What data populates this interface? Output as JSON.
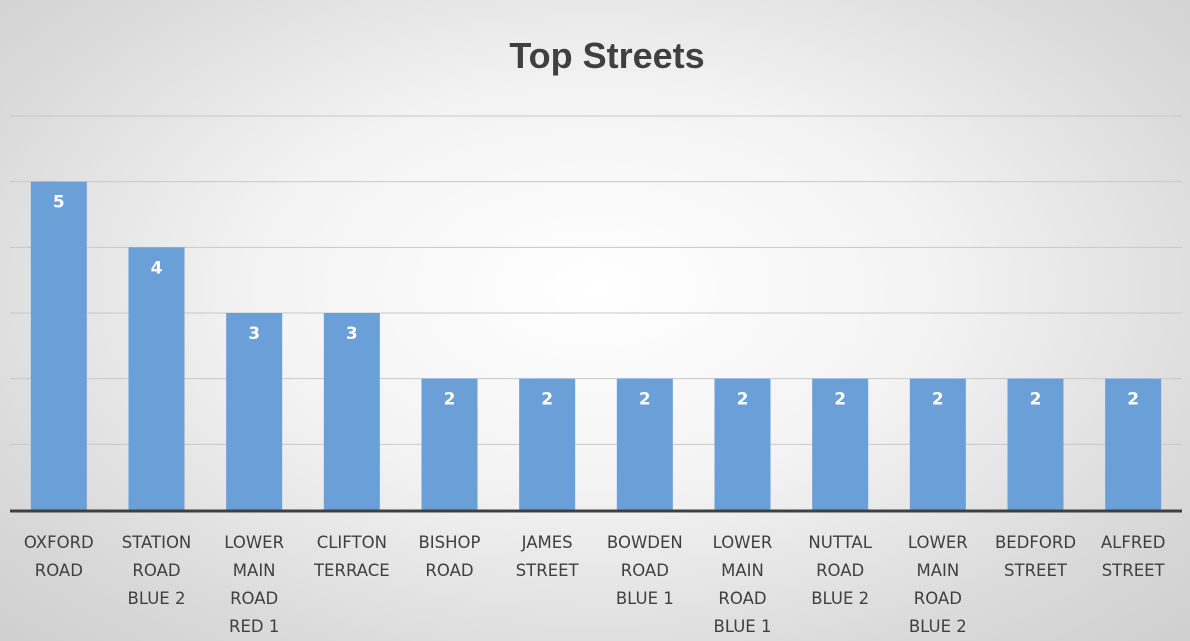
{
  "chart_data": {
    "type": "bar",
    "title": "Top Streets",
    "categories": [
      [
        "OXFORD",
        "ROAD"
      ],
      [
        "STATION",
        "ROAD",
        "BLUE 2"
      ],
      [
        "LOWER",
        "MAIN",
        "ROAD",
        "RED 1"
      ],
      [
        "CLIFTON",
        "TERRACE"
      ],
      [
        "BISHOP",
        "ROAD"
      ],
      [
        "JAMES",
        "STREET"
      ],
      [
        "BOWDEN",
        "ROAD",
        "BLUE 1"
      ],
      [
        "LOWER",
        "MAIN",
        "ROAD",
        "BLUE 1"
      ],
      [
        "NUTTAL",
        "ROAD",
        "BLUE 2"
      ],
      [
        "LOWER",
        "MAIN",
        "ROAD",
        "BLUE 2"
      ],
      [
        "BEDFORD",
        "STREET"
      ],
      [
        "ALFRED",
        "STREET"
      ]
    ],
    "values": [
      5,
      4,
      3,
      3,
      2,
      2,
      2,
      2,
      2,
      2,
      2,
      2
    ],
    "xlabel": "",
    "ylabel": "",
    "ylim": [
      0,
      6
    ],
    "grid": true,
    "data_labels": true,
    "legend": "none",
    "bar_color": "#6a9fd8",
    "axis_color": "#404040",
    "grid_color": "#c8c8c8"
  }
}
